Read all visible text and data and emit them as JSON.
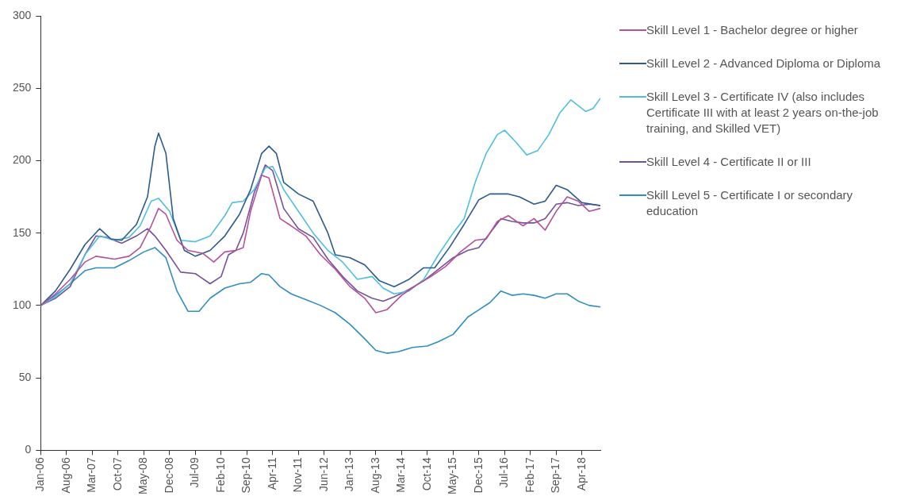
{
  "chart_data": {
    "type": "line",
    "xlim": [
      "2006-01",
      "2018-09"
    ],
    "xticks": [
      {
        "value": "2006-01",
        "label": "Jan-06"
      },
      {
        "value": "2006-08",
        "label": "Aug-06"
      },
      {
        "value": "2007-03",
        "label": "Mar-07"
      },
      {
        "value": "2007-10",
        "label": "Oct-07"
      },
      {
        "value": "2008-05",
        "label": "May-08"
      },
      {
        "value": "2008-12",
        "label": "Dec-08"
      },
      {
        "value": "2009-07",
        "label": "Jul-09"
      },
      {
        "value": "2010-02",
        "label": "Feb-10"
      },
      {
        "value": "2010-09",
        "label": "Sep-10"
      },
      {
        "value": "2011-04",
        "label": "Apr-11"
      },
      {
        "value": "2011-11",
        "label": "Nov-11"
      },
      {
        "value": "2012-06",
        "label": "Jun-12"
      },
      {
        "value": "2013-01",
        "label": "Jan-13"
      },
      {
        "value": "2013-08",
        "label": "Aug-13"
      },
      {
        "value": "2014-03",
        "label": "Mar-14"
      },
      {
        "value": "2014-10",
        "label": "Oct-14"
      },
      {
        "value": "2015-05",
        "label": "May-15"
      },
      {
        "value": "2015-12",
        "label": "Dec-15"
      },
      {
        "value": "2016-07",
        "label": "Jul-16"
      },
      {
        "value": "2017-02",
        "label": "Feb-17"
      },
      {
        "value": "2017-09",
        "label": "Sep-17"
      },
      {
        "value": "2018-04",
        "label": "Apr-18"
      }
    ],
    "ylim": [
      0,
      300
    ],
    "yticks": [
      0,
      50,
      100,
      150,
      200,
      250,
      300
    ],
    "grid": false,
    "legend": "right",
    "marker": "none",
    "line_style": "solid",
    "series": [
      {
        "name": "Skill Level 1 - Bachelor degree or higher",
        "color": "#b5509a",
        "x": [
          "2006-01",
          "2006-05",
          "2006-09",
          "2007-01",
          "2007-04",
          "2007-09",
          "2008-01",
          "2008-04",
          "2008-07",
          "2008-09",
          "2008-11",
          "2009-02",
          "2009-05",
          "2009-09",
          "2009-12",
          "2010-03",
          "2010-06",
          "2010-08",
          "2010-10",
          "2011-01",
          "2011-03",
          "2011-06",
          "2011-09",
          "2012-01",
          "2012-05",
          "2012-09",
          "2013-01",
          "2013-05",
          "2013-08",
          "2013-11",
          "2014-03",
          "2014-07",
          "2014-11",
          "2015-03",
          "2015-07",
          "2015-11",
          "2016-02",
          "2016-05",
          "2016-08",
          "2016-12",
          "2017-03",
          "2017-06",
          "2017-09",
          "2017-12",
          "2018-03",
          "2018-06",
          "2018-09"
        ],
        "values": [
          100,
          108,
          118,
          130,
          134,
          132,
          134,
          140,
          155,
          167,
          163,
          145,
          138,
          136,
          130,
          137,
          138,
          140,
          165,
          190,
          188,
          160,
          155,
          148,
          135,
          125,
          113,
          105,
          95,
          97,
          107,
          114,
          120,
          127,
          137,
          145,
          146,
          158,
          162,
          155,
          160,
          152,
          165,
          175,
          172,
          165,
          167
        ]
      },
      {
        "name": "Skill Level 2 - Advanced Diploma or Diploma",
        "color": "#2d5b8c",
        "x": [
          "2006-01",
          "2006-05",
          "2006-09",
          "2007-01",
          "2007-05",
          "2007-08",
          "2007-11",
          "2008-03",
          "2008-06",
          "2008-08",
          "2008-09",
          "2008-11",
          "2009-01",
          "2009-04",
          "2009-07",
          "2009-11",
          "2010-03",
          "2010-07",
          "2010-10",
          "2011-01",
          "2011-03",
          "2011-05",
          "2011-07",
          "2011-11",
          "2012-03",
          "2012-07",
          "2012-09",
          "2013-01",
          "2013-05",
          "2013-09",
          "2014-01",
          "2014-05",
          "2014-09",
          "2014-12",
          "2015-04",
          "2015-08",
          "2015-12",
          "2016-03",
          "2016-08",
          "2016-11",
          "2017-03",
          "2017-06",
          "2017-09",
          "2017-12",
          "2018-04",
          "2018-09"
        ],
        "values": [
          100,
          110,
          125,
          142,
          153,
          146,
          145,
          156,
          175,
          210,
          219,
          205,
          160,
          138,
          134,
          138,
          148,
          163,
          180,
          205,
          210,
          205,
          185,
          177,
          172,
          150,
          135,
          133,
          128,
          117,
          113,
          118,
          126,
          126,
          140,
          156,
          173,
          177,
          177,
          175,
          170,
          172,
          183,
          180,
          171,
          169
        ]
      },
      {
        "name": "Skill Level 3 - Certificate IV (also includes Certificate III with at least 2 years on-the-job training, and Skilled VET)",
        "color": "#4fbfe0",
        "x": [
          "2006-01",
          "2006-05",
          "2006-09",
          "2007-01",
          "2007-05",
          "2007-09",
          "2008-01",
          "2008-04",
          "2008-07",
          "2008-09",
          "2008-12",
          "2009-03",
          "2009-07",
          "2009-11",
          "2010-03",
          "2010-05",
          "2010-08",
          "2010-11",
          "2011-02",
          "2011-04",
          "2011-07",
          "2011-11",
          "2012-03",
          "2012-07",
          "2012-11",
          "2013-03",
          "2013-07",
          "2013-10",
          "2014-01",
          "2014-05",
          "2014-09",
          "2015-01",
          "2015-05",
          "2015-08",
          "2015-11",
          "2016-02",
          "2016-05",
          "2016-07",
          "2016-10",
          "2017-01",
          "2017-04",
          "2017-07",
          "2017-10",
          "2018-01",
          "2018-03",
          "2018-05",
          "2018-07",
          "2018-09"
        ],
        "values": [
          100,
          106,
          115,
          135,
          148,
          145,
          147,
          155,
          172,
          174,
          165,
          145,
          144,
          148,
          162,
          171,
          172,
          180,
          195,
          196,
          180,
          165,
          150,
          138,
          130,
          118,
          120,
          112,
          108,
          110,
          118,
          135,
          150,
          160,
          185,
          205,
          218,
          221,
          213,
          204,
          207,
          218,
          233,
          242,
          238,
          234,
          236,
          243
        ]
      },
      {
        "name": "Skill Level 4 - Certificate II or III",
        "color": "#74529a",
        "x": [
          "2006-01",
          "2006-05",
          "2006-09",
          "2007-01",
          "2007-04",
          "2007-07",
          "2007-11",
          "2008-03",
          "2008-06",
          "2008-08",
          "2008-11",
          "2009-03",
          "2009-07",
          "2009-11",
          "2010-02",
          "2010-04",
          "2010-06",
          "2010-08",
          "2010-11",
          "2011-02",
          "2011-04",
          "2011-07",
          "2011-11",
          "2012-03",
          "2012-07",
          "2012-11",
          "2013-03",
          "2013-07",
          "2013-10",
          "2014-01",
          "2014-05",
          "2014-09",
          "2015-01",
          "2015-05",
          "2015-09",
          "2015-12",
          "2016-03",
          "2016-06",
          "2016-09",
          "2016-12",
          "2017-03",
          "2017-06",
          "2017-09",
          "2017-12",
          "2018-03",
          "2018-06",
          "2018-09"
        ],
        "values": [
          100,
          105,
          113,
          135,
          148,
          147,
          143,
          148,
          153,
          148,
          138,
          123,
          122,
          115,
          120,
          135,
          138,
          150,
          178,
          197,
          193,
          167,
          153,
          147,
          132,
          120,
          110,
          105,
          103,
          106,
          111,
          117,
          125,
          133,
          138,
          140,
          150,
          160,
          158,
          157,
          157,
          160,
          170,
          171,
          169,
          170,
          169
        ]
      },
      {
        "name": "Skill Level 5 - Certificate I or secondary education",
        "color": "#2f8fbf",
        "x": [
          "2006-01",
          "2006-05",
          "2006-09",
          "2007-01",
          "2007-04",
          "2007-09",
          "2008-01",
          "2008-05",
          "2008-08",
          "2008-11",
          "2009-02",
          "2009-05",
          "2009-08",
          "2009-11",
          "2010-03",
          "2010-07",
          "2010-10",
          "2011-01",
          "2011-03",
          "2011-06",
          "2011-09",
          "2012-01",
          "2012-05",
          "2012-09",
          "2013-01",
          "2013-05",
          "2013-08",
          "2013-11",
          "2014-02",
          "2014-06",
          "2014-10",
          "2015-01",
          "2015-05",
          "2015-09",
          "2015-12",
          "2016-03",
          "2016-06",
          "2016-09",
          "2016-12",
          "2017-03",
          "2017-06",
          "2017-09",
          "2017-12",
          "2018-03",
          "2018-06",
          "2018-09"
        ],
        "values": [
          100,
          107,
          115,
          124,
          126,
          126,
          131,
          137,
          140,
          133,
          110,
          96,
          96,
          105,
          112,
          115,
          116,
          122,
          121,
          113,
          108,
          104,
          100,
          95,
          87,
          77,
          69,
          67,
          68,
          71,
          72,
          75,
          80,
          92,
          97,
          102,
          110,
          107,
          108,
          107,
          105,
          108,
          108,
          103,
          100,
          99
        ]
      }
    ]
  }
}
